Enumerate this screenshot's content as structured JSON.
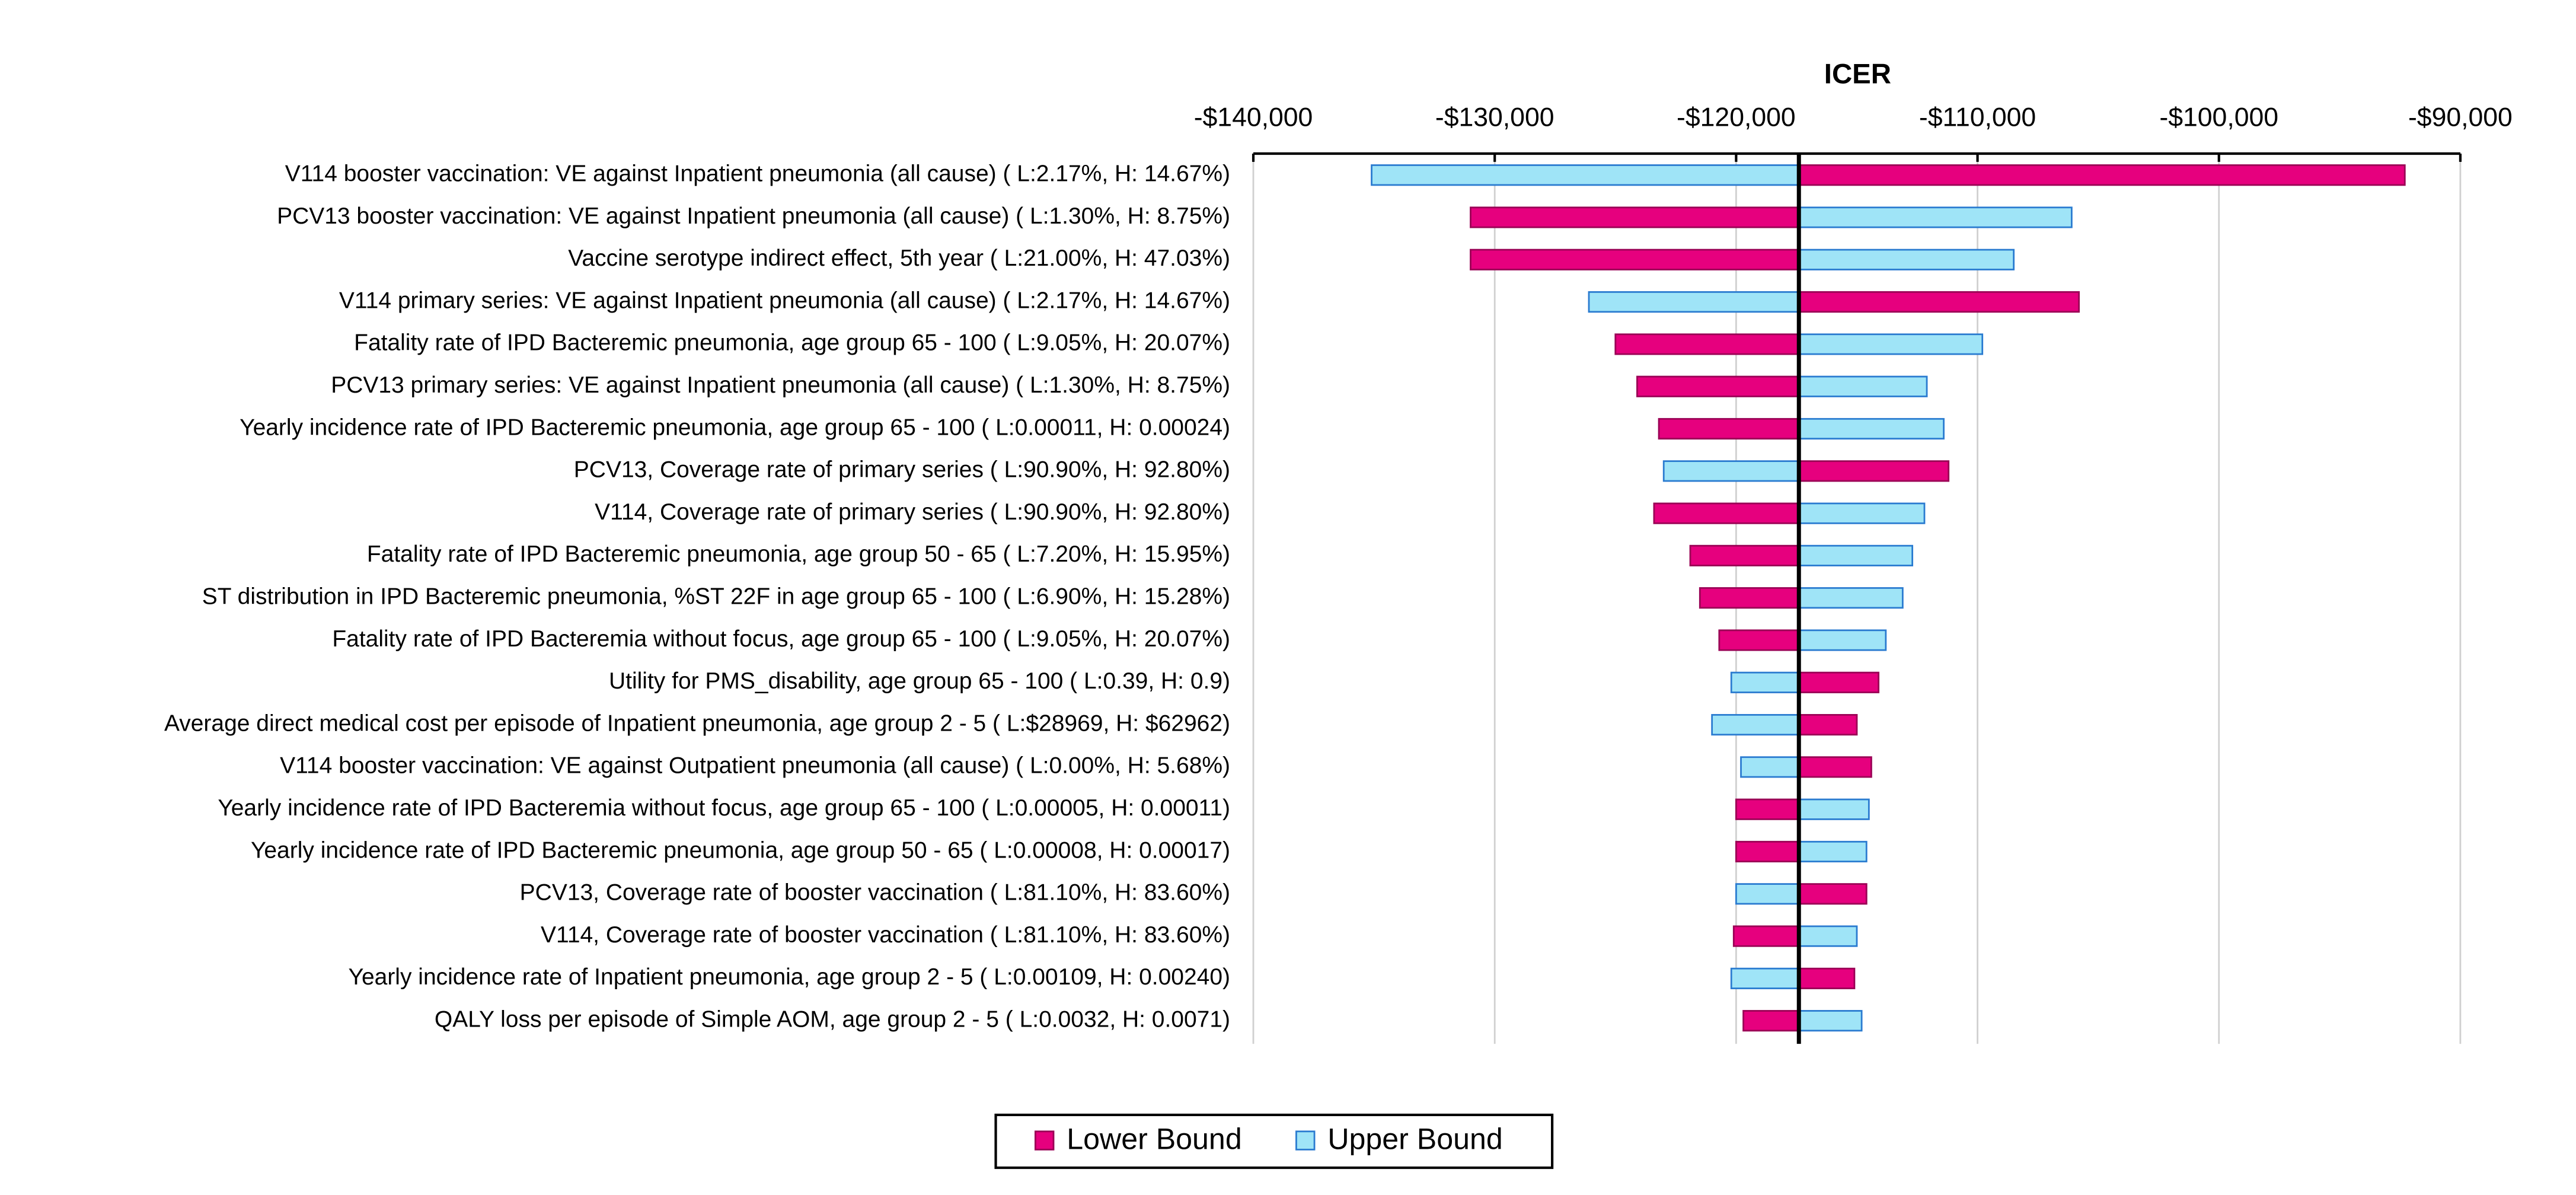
{
  "chart_data": {
    "type": "tornado",
    "title": "ICER",
    "categories": [
      "V114 booster vaccination:  VE against Inpatient pneumonia (all cause)   ( L:2.17%, H: 14.67%)",
      "PCV13 booster vaccination:  VE against Inpatient pneumonia (all cause)   ( L:1.30%, H: 8.75%)",
      "Vaccine serotype indirect effect, 5th year   ( L:21.00%, H: 47.03%)",
      "V114 primary series:  VE against Inpatient pneumonia (all cause)   ( L:2.17%, H: 14.67%)",
      "Fatality rate of IPD Bacteremic pneumonia, age group 65 - 100   ( L:9.05%, H: 20.07%)",
      "PCV13 primary series:  VE against Inpatient pneumonia (all cause)   ( L:1.30%, H: 8.75%)",
      "Yearly incidence rate of IPD Bacteremic pneumonia, age group 65 - 100   ( L:0.00011, H: 0.00024)",
      "PCV13, Coverage rate of primary series   ( L:90.90%, H: 92.80%)",
      "V114, Coverage rate of primary series   ( L:90.90%, H: 92.80%)",
      "Fatality rate of IPD Bacteremic pneumonia, age group 50 - 65   ( L:7.20%, H: 15.95%)",
      "ST distribution in IPD Bacteremic pneumonia, %ST 22F in age group 65 - 100   ( L:6.90%, H: 15.28%)",
      "Fatality rate of IPD Bacteremia without focus, age group 65 - 100   ( L:9.05%, H: 20.07%)",
      "Utility for PMS_disability, age group 65 - 100   ( L:0.39, H: 0.9)",
      "Average direct medical cost per episode of Inpatient pneumonia, age group 2 - 5   ( L:$28969, H: $62962)",
      "V114 booster vaccination:  VE against Outpatient pneumonia (all cause)   ( L:0.00%, H: 5.68%)",
      "Yearly incidence rate of IPD Bacteremia without focus, age group 65 - 100   ( L:0.00005, H: 0.00011)",
      "Yearly incidence rate of IPD Bacteremic pneumonia, age group 50 - 65   ( L:0.00008, H: 0.00017)",
      "PCV13, Coverage rate of booster vaccination   ( L:81.10%, H: 83.60%)",
      "V114, Coverage rate of booster vaccination   ( L:81.10%, H: 83.60%)",
      "Yearly incidence rate of Inpatient pneumonia, age group 2 - 5   ( L:0.00109, H: 0.00240)",
      "QALY loss per episode of Simple AOM, age group 2 - 5   ( L:0.0032, H: 0.0071)"
    ],
    "base": -117400,
    "series": [
      {
        "name": "Lower Bound",
        "color": "#e6007e",
        "values": [
          -92300,
          -131000,
          -131000,
          -105800,
          -125000,
          -124100,
          -123200,
          -111200,
          -123400,
          -121900,
          -121500,
          -120700,
          -114100,
          -115000,
          -114400,
          -120000,
          -120000,
          -114600,
          -120100,
          -115100,
          -119700
        ]
      },
      {
        "name": "Upper Bound",
        "color": "#9fe4f7",
        "values": [
          -135100,
          -106100,
          -108500,
          -126100,
          -109800,
          -112100,
          -111400,
          -123000,
          -112200,
          -112700,
          -113100,
          -113800,
          -120200,
          -121000,
          -119800,
          -114500,
          -114600,
          -120000,
          -115000,
          -120200,
          -114800
        ]
      }
    ],
    "xlim": [
      -140000,
      -90000
    ],
    "xticks": [
      {
        "value": -140000,
        "label": "-$140,000"
      },
      {
        "value": -130000,
        "label": "-$130,000"
      },
      {
        "value": -120000,
        "label": "-$120,000"
      },
      {
        "value": -110000,
        "label": "-$110,000"
      },
      {
        "value": -100000,
        "label": "-$100,000"
      },
      {
        "value": -90000,
        "label": "-$90,000"
      }
    ],
    "grid": true,
    "legend": "bottom"
  }
}
